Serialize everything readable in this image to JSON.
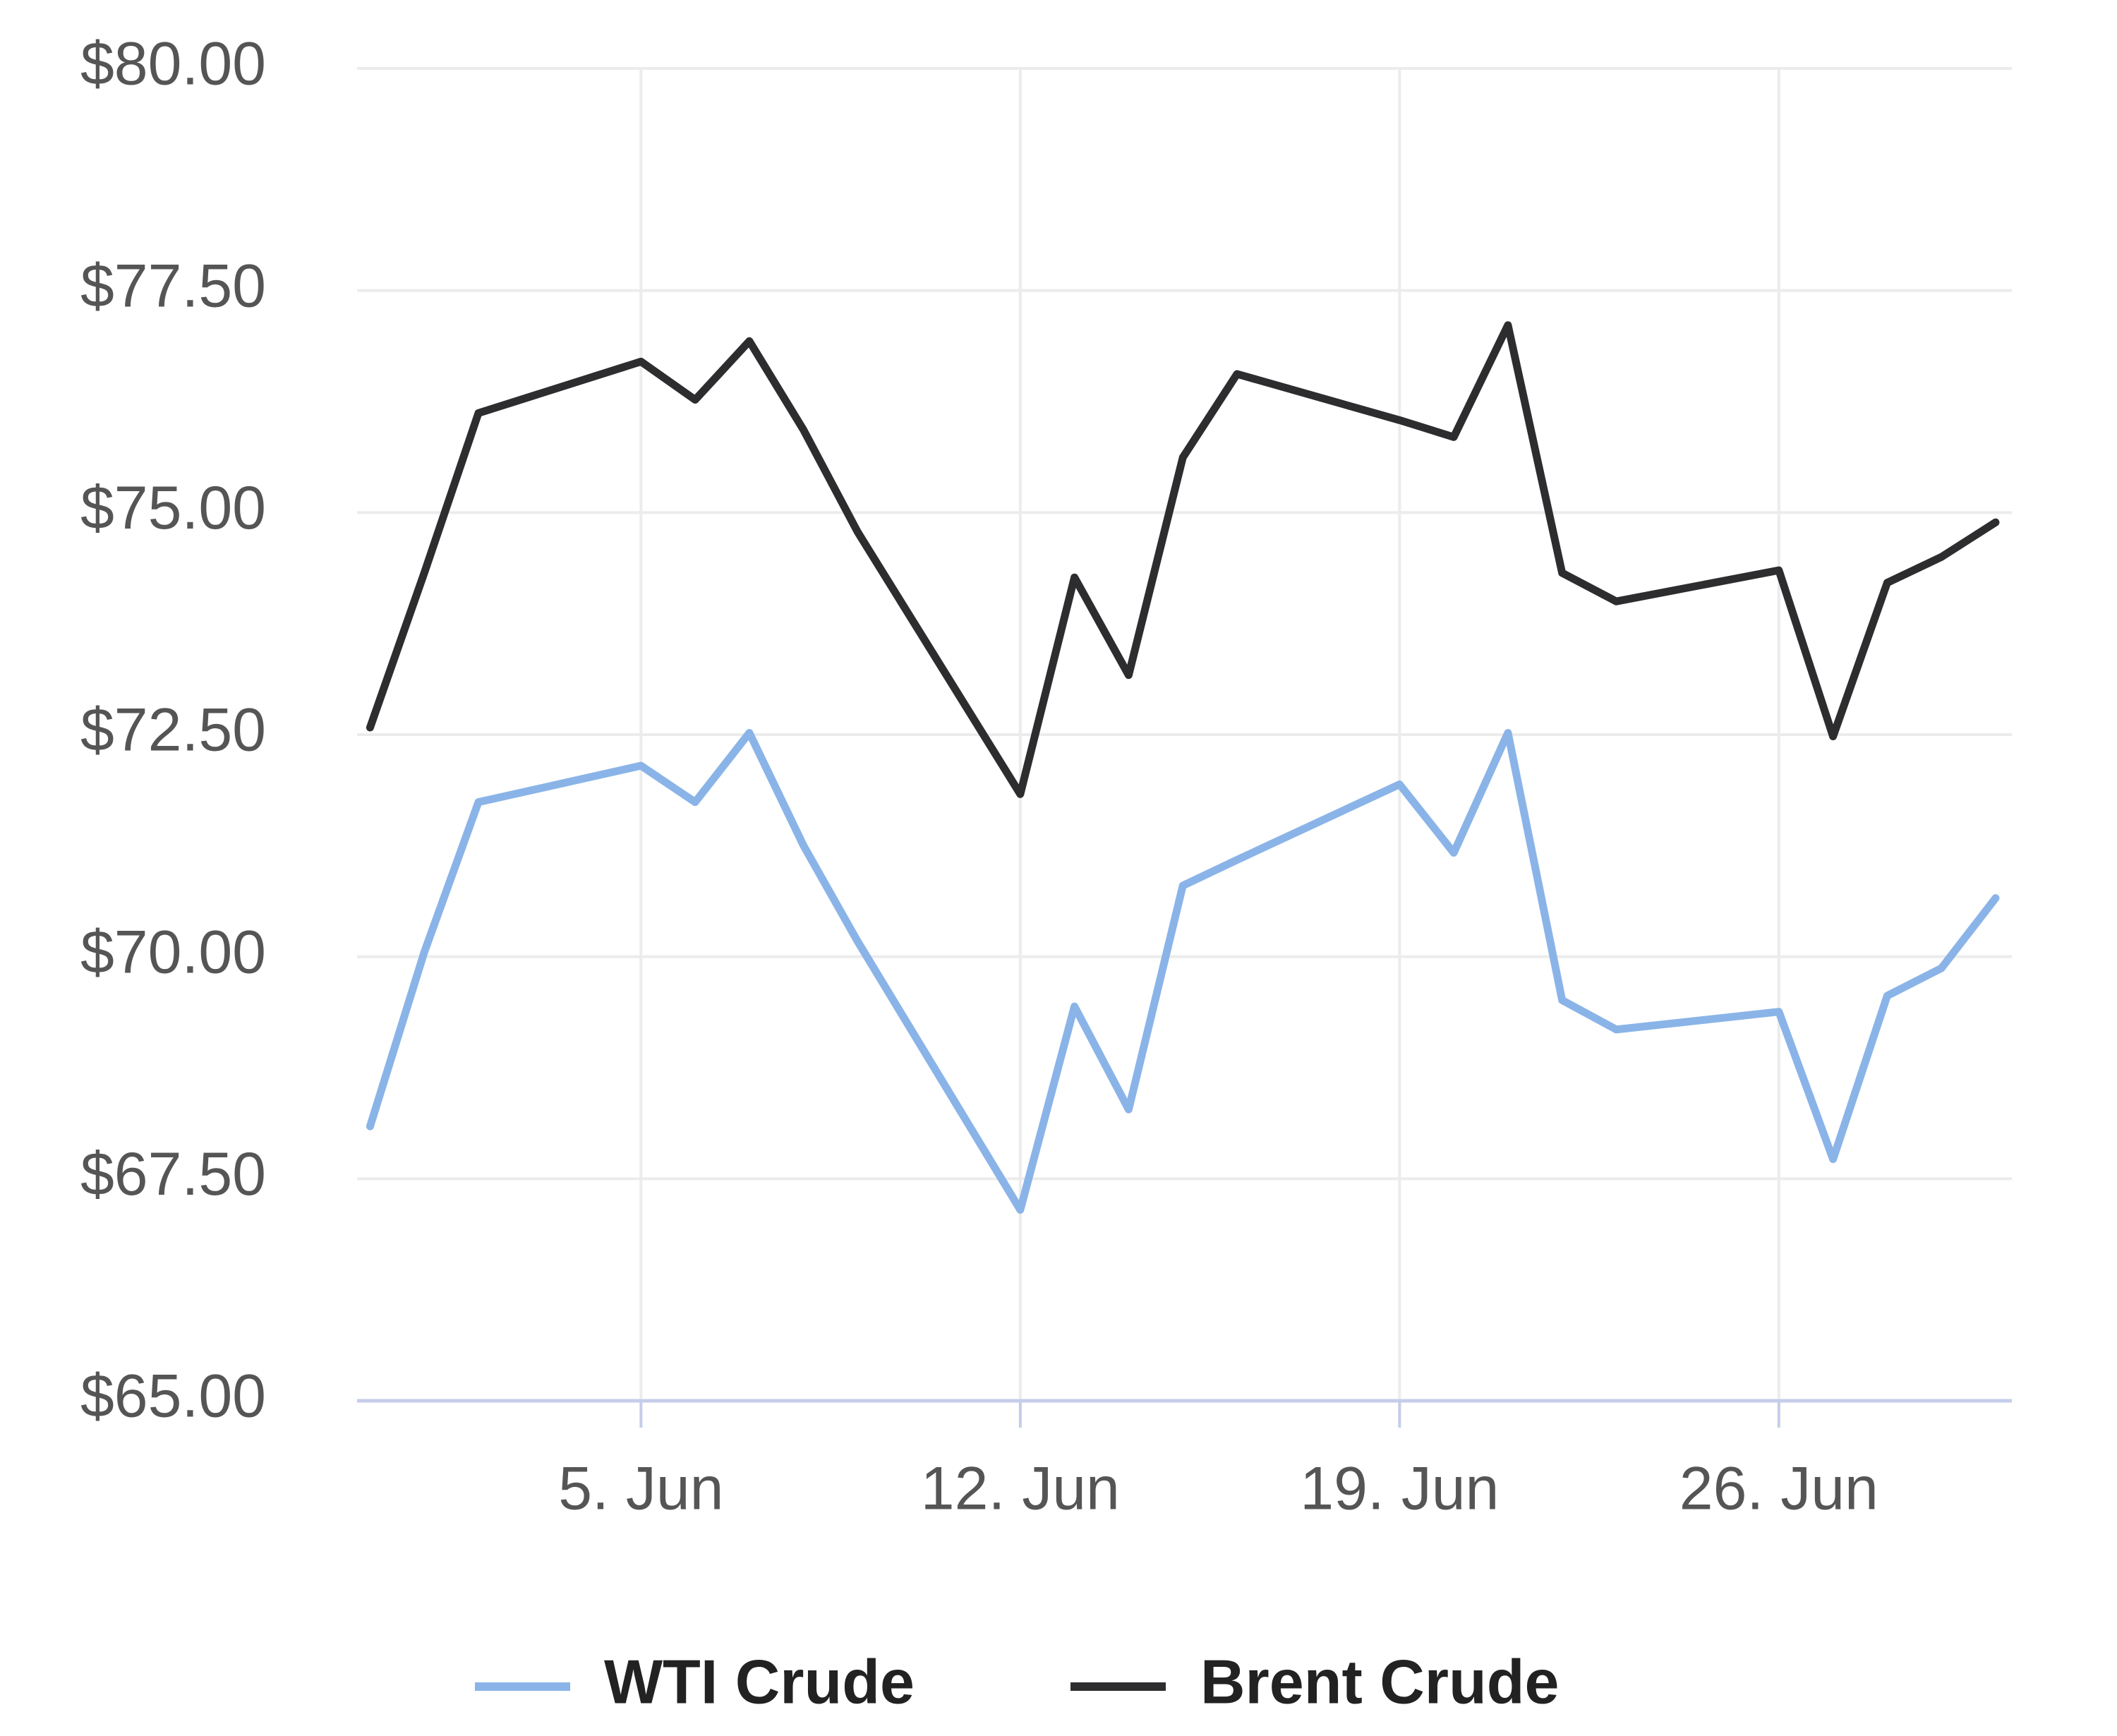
{
  "chart_data": {
    "type": "line",
    "x": [
      0,
      1,
      2,
      5,
      6,
      7,
      8,
      9,
      12,
      13,
      14,
      15,
      16,
      19,
      20,
      21,
      22,
      23,
      26,
      27,
      28,
      29,
      30
    ],
    "series": [
      {
        "name": "WTI Crude",
        "color": "#8ab4e8",
        "values": [
          68.09,
          70.05,
          71.74,
          72.15,
          71.74,
          72.52,
          71.25,
          70.17,
          67.15,
          69.44,
          68.28,
          70.8,
          71.09,
          71.94,
          71.17,
          72.52,
          69.51,
          69.18,
          69.38,
          67.72,
          69.56,
          69.87,
          70.66
        ]
      },
      {
        "name": "Brent Crude",
        "color": "#2d2d2f",
        "values": [
          72.58,
          74.32,
          76.12,
          76.7,
          76.27,
          76.93,
          75.93,
          74.78,
          71.83,
          74.27,
          73.17,
          75.62,
          76.56,
          76.04,
          75.85,
          77.11,
          74.32,
          74.0,
          74.35,
          72.48,
          74.21,
          74.5,
          74.89
        ]
      }
    ],
    "xlim": [
      -0.24,
      30.3
    ],
    "xticks": [
      {
        "value": 5,
        "label": "5. Jun"
      },
      {
        "value": 12,
        "label": "12. Jun"
      },
      {
        "value": 19,
        "label": "19. Jun"
      },
      {
        "value": 26,
        "label": "26. Jun"
      }
    ],
    "ylim": [
      65,
      80
    ],
    "yticks": [
      {
        "value": 65,
        "label": "$65.00"
      },
      {
        "value": 67.5,
        "label": "$67.50"
      },
      {
        "value": 70,
        "label": "$70.00"
      },
      {
        "value": 72.5,
        "label": "$72.50"
      },
      {
        "value": 75,
        "label": "$75.00"
      },
      {
        "value": 77.5,
        "label": "$77.50"
      },
      {
        "value": 80,
        "label": "$80.00"
      }
    ],
    "grid": true,
    "legend": "bottom"
  }
}
